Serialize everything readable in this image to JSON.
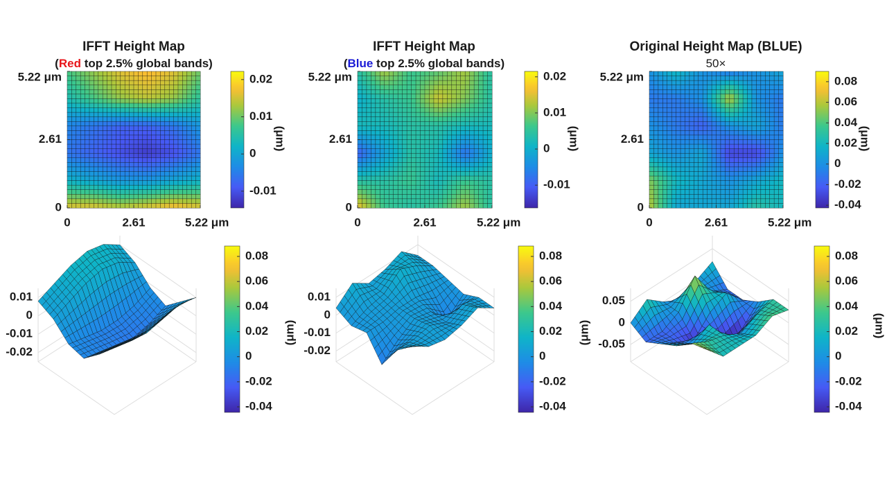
{
  "chart_data": [
    {
      "type": "heatmap",
      "title": "IFFT Height Map",
      "subtitle": [
        {
          "text": "("
        },
        {
          "text": "Red",
          "color": "#e8161b"
        },
        {
          "text": " top 2.5% global bands)"
        }
      ],
      "xlim": [
        0,
        5.22
      ],
      "xticks": [
        0,
        2.61,
        {
          "value": 5.22,
          "label": "5.22 μm"
        }
      ],
      "ylim": [
        0,
        5.22
      ],
      "yticks": [
        0,
        2.61,
        {
          "value": 5.22,
          "label": "5.22 μm"
        }
      ],
      "colormap": "parula",
      "clim": [
        -0.0145,
        0.0222
      ],
      "cticks": [
        -0.01,
        0,
        0.01,
        0.02
      ],
      "clabel": "(μm)",
      "z": [
        [
          0.008,
          0.012,
          0.016,
          0.018,
          0.016,
          0.01
        ],
        [
          0.004,
          0.008,
          0.012,
          0.014,
          0.012,
          0.006
        ],
        [
          -0.004,
          -0.006,
          -0.008,
          -0.008,
          -0.006,
          -0.002
        ],
        [
          -0.006,
          -0.008,
          -0.01,
          -0.012,
          -0.01,
          -0.006
        ],
        [
          0.002,
          0.0,
          -0.002,
          -0.002,
          0.0,
          0.002
        ],
        [
          0.016,
          0.016,
          0.014,
          0.016,
          0.018,
          0.016
        ]
      ]
    },
    {
      "type": "heatmap",
      "title": "IFFT Height Map",
      "subtitle": [
        {
          "text": "("
        },
        {
          "text": "Blue",
          "color": "#1a1ad6"
        },
        {
          "text": " top 2.5% global bands)"
        }
      ],
      "xlim": [
        0,
        5.22
      ],
      "xticks": [
        0,
        2.61,
        {
          "value": 5.22,
          "label": "5.22 μm"
        }
      ],
      "ylim": [
        0,
        5.22
      ],
      "yticks": [
        0,
        2.61,
        {
          "value": 5.22,
          "label": "5.22 μm"
        }
      ],
      "colormap": "parula",
      "clim": [
        -0.0163,
        0.0215
      ],
      "cticks": [
        -0.01,
        0,
        0.01,
        0.02
      ],
      "clabel": "(μm)",
      "z": [
        [
          0.004,
          0.012,
          0.006,
          0.008,
          0.012,
          0.004
        ],
        [
          0.0,
          0.004,
          0.006,
          0.014,
          0.01,
          0.004
        ],
        [
          0.002,
          0.002,
          0.004,
          0.004,
          0.002,
          0.002
        ],
        [
          -0.01,
          -0.002,
          0.004,
          0.002,
          -0.008,
          0.0
        ],
        [
          0.004,
          0.004,
          0.006,
          0.002,
          0.006,
          0.004
        ],
        [
          0.016,
          0.006,
          0.004,
          0.006,
          0.012,
          0.004
        ]
      ]
    },
    {
      "type": "heatmap",
      "title": "Original Height Map (BLUE)",
      "subtitle": [
        {
          "text": "50×"
        }
      ],
      "xlim": [
        0,
        5.22
      ],
      "xticks": [
        0,
        2.61,
        {
          "value": 5.22,
          "label": "5.22 μm"
        }
      ],
      "ylim": [
        0,
        5.22
      ],
      "yticks": [
        0,
        2.61,
        {
          "value": 5.22,
          "label": "5.22 μm"
        }
      ],
      "colormap": "parula",
      "clim": [
        -0.0426,
        0.09
      ],
      "cticks": [
        -0.04,
        -0.02,
        0,
        0.02,
        0.04,
        0.06,
        0.08
      ],
      "clabel": "(μm)",
      "z": [
        [
          0.0,
          0.02,
          0.0,
          -0.01,
          0.0,
          0.01
        ],
        [
          -0.01,
          -0.01,
          0.0,
          0.06,
          0.0,
          -0.01
        ],
        [
          0.0,
          -0.01,
          -0.02,
          0.0,
          0.01,
          -0.01
        ],
        [
          0.01,
          0.0,
          0.01,
          -0.03,
          -0.03,
          0.0
        ],
        [
          0.05,
          0.02,
          0.01,
          0.0,
          0.01,
          0.02
        ],
        [
          0.06,
          0.01,
          0.01,
          0.01,
          0.03,
          0.02
        ]
      ]
    },
    {
      "type": "surface",
      "zlim": [
        -0.025,
        0.015
      ],
      "zticks": [
        -0.02,
        -0.01,
        0,
        0.01
      ],
      "colormap": "parula",
      "clim": [
        -0.0444,
        0.0883
      ],
      "cticks": [
        -0.04,
        -0.02,
        0,
        0.02,
        0.04,
        0.06,
        0.08
      ],
      "z": [
        [
          0.008,
          0.012,
          0.016,
          0.018,
          0.016,
          0.01
        ],
        [
          0.004,
          0.008,
          0.012,
          0.014,
          0.012,
          0.006
        ],
        [
          -0.004,
          -0.006,
          -0.008,
          -0.008,
          -0.006,
          -0.002
        ],
        [
          -0.006,
          -0.008,
          -0.01,
          -0.012,
          -0.01,
          -0.006
        ],
        [
          0.002,
          0.0,
          -0.002,
          -0.002,
          0.0,
          0.002
        ],
        [
          0.012,
          0.01,
          0.008,
          0.01,
          0.012,
          0.01
        ]
      ]
    },
    {
      "type": "surface",
      "zlim": [
        -0.026,
        0.015
      ],
      "zticks": [
        -0.02,
        -0.01,
        0,
        0.01
      ],
      "zlabel": "(μm)",
      "colormap": "parula",
      "clim": [
        -0.0444,
        0.0883
      ],
      "cticks": [
        -0.04,
        -0.02,
        0,
        0.02,
        0.04,
        0.06,
        0.08
      ],
      "z": [
        [
          0.004,
          0.012,
          0.006,
          0.008,
          0.012,
          0.004
        ],
        [
          0.0,
          0.004,
          0.006,
          0.014,
          0.01,
          0.004
        ],
        [
          0.002,
          0.002,
          0.004,
          0.004,
          0.002,
          0.002
        ],
        [
          -0.01,
          -0.002,
          0.004,
          0.002,
          -0.008,
          0.0
        ],
        [
          0.004,
          0.004,
          0.006,
          0.002,
          0.006,
          0.004
        ],
        [
          0.012,
          0.006,
          0.004,
          0.006,
          0.01,
          0.004
        ]
      ]
    },
    {
      "type": "surface",
      "zlim": [
        -0.09,
        0.08
      ],
      "zticks": [
        -0.05,
        0,
        0.05
      ],
      "zlabel": "(μm)",
      "colormap": "parula",
      "clim": [
        -0.0444,
        0.0883
      ],
      "cticks": [
        -0.04,
        -0.02,
        0,
        0.02,
        0.04,
        0.06,
        0.08
      ],
      "clabel": "(μm)",
      "z": [
        [
          0.0,
          0.03,
          0.0,
          -0.02,
          0.0,
          0.02
        ],
        [
          -0.02,
          -0.02,
          0.0,
          0.06,
          0.0,
          -0.02
        ],
        [
          0.0,
          -0.02,
          -0.04,
          0.0,
          0.02,
          -0.02
        ],
        [
          0.02,
          0.0,
          0.02,
          -0.05,
          -0.04,
          0.0
        ],
        [
          0.05,
          0.03,
          0.02,
          0.0,
          0.02,
          0.03
        ],
        [
          0.06,
          0.02,
          0.02,
          0.02,
          0.04,
          0.03
        ]
      ]
    }
  ]
}
